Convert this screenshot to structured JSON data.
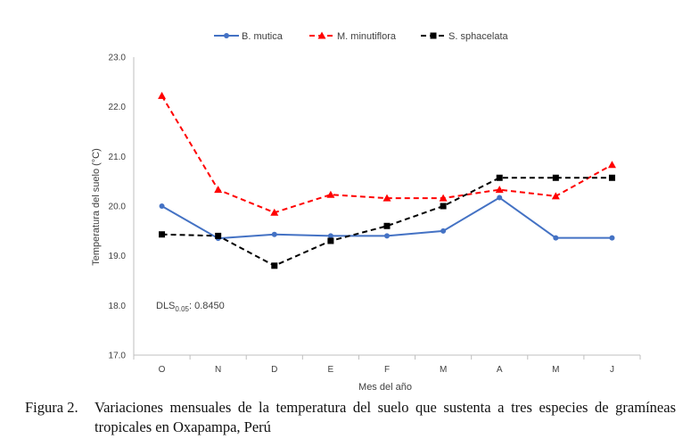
{
  "chart_data": {
    "type": "line",
    "categories": [
      "O",
      "N",
      "D",
      "E",
      "F",
      "M",
      "A",
      "M",
      "J"
    ],
    "series": [
      {
        "name": "B. mutica",
        "color": "#4472C4",
        "marker": "circle",
        "dashed": false,
        "values": [
          20.0,
          19.35,
          19.43,
          19.4,
          19.4,
          19.5,
          20.17,
          19.36,
          19.36
        ]
      },
      {
        "name": "M. minutiflora",
        "color": "#FF0000",
        "marker": "triangle",
        "dashed": true,
        "values": [
          22.22,
          20.33,
          19.87,
          20.23,
          20.16,
          20.16,
          20.33,
          20.2,
          20.83
        ]
      },
      {
        "name": "S. sphacelata",
        "color": "#000000",
        "marker": "square",
        "dashed": true,
        "values": [
          19.43,
          19.4,
          18.8,
          19.3,
          19.6,
          20.0,
          20.57,
          20.57,
          20.57
        ]
      }
    ],
    "yticks": [
      "23.0",
      "22.0",
      "21.0",
      "20.0",
      "19.0",
      "18.0",
      "17.0"
    ],
    "ylim": [
      17.0,
      23.0
    ],
    "ylabel": "Temperatura del suelo (°C)",
    "xlabel": "Mes del año",
    "legend_position": "top",
    "grid": false,
    "annotation": {
      "prefix": "DLS",
      "subscript": "0.05",
      "value": ": 0.8450"
    }
  },
  "caption": {
    "label": "Figura 2.",
    "text": "Variaciones mensuales de la temperatura del suelo que sustenta a tres especies de gramíneas tropicales en Oxapampa, Perú"
  }
}
